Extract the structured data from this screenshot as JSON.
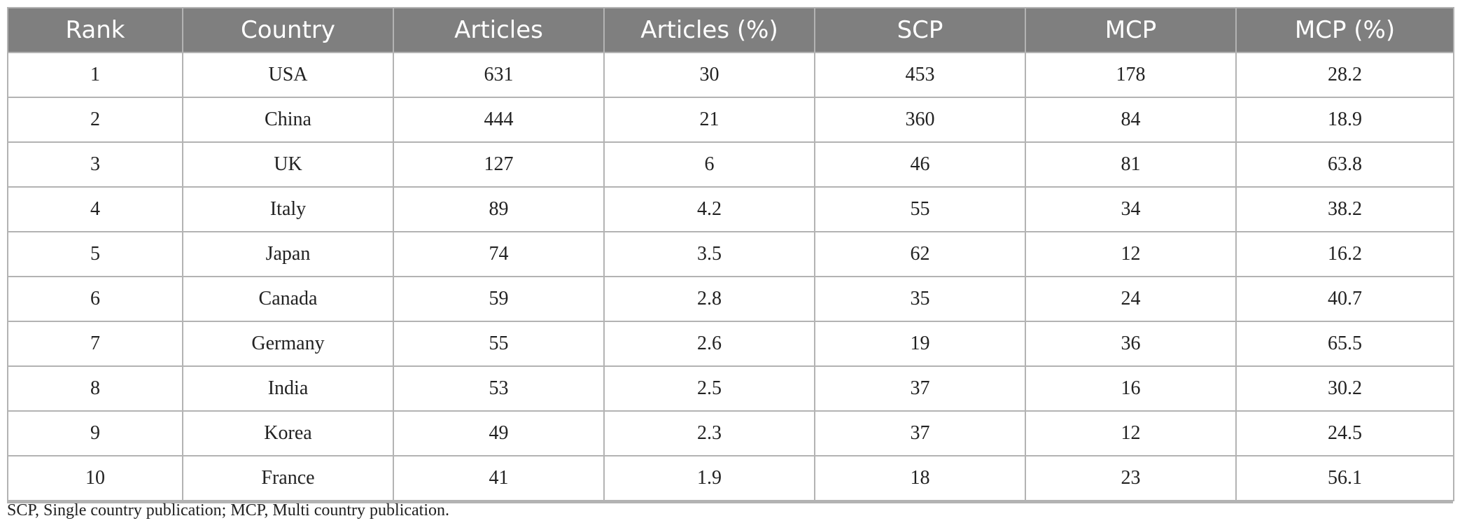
{
  "table": {
    "columns": [
      "Rank",
      "Country",
      "Articles",
      "Articles (%)",
      "SCP",
      "MCP",
      "MCP (%)"
    ],
    "rows": [
      [
        "1",
        "USA",
        "631",
        "30",
        "453",
        "178",
        "28.2"
      ],
      [
        "2",
        "China",
        "444",
        "21",
        "360",
        "84",
        "18.9"
      ],
      [
        "3",
        "UK",
        "127",
        "6",
        "46",
        "81",
        "63.8"
      ],
      [
        "4",
        "Italy",
        "89",
        "4.2",
        "55",
        "34",
        "38.2"
      ],
      [
        "5",
        "Japan",
        "74",
        "3.5",
        "62",
        "12",
        "16.2"
      ],
      [
        "6",
        "Canada",
        "59",
        "2.8",
        "35",
        "24",
        "40.7"
      ],
      [
        "7",
        "Germany",
        "55",
        "2.6",
        "19",
        "36",
        "65.5"
      ],
      [
        "8",
        "India",
        "53",
        "2.5",
        "37",
        "16",
        "30.2"
      ],
      [
        "9",
        "Korea",
        "49",
        "2.3",
        "37",
        "12",
        "24.5"
      ],
      [
        "10",
        "France",
        "41",
        "1.9",
        "18",
        "23",
        "56.1"
      ]
    ]
  },
  "footnote": "SCP, Single country publication; MCP, Multi country publication.",
  "colors": {
    "header_bg": "#7f7f7f",
    "header_text": "#ffffff",
    "grid": "#b3b3b3"
  }
}
